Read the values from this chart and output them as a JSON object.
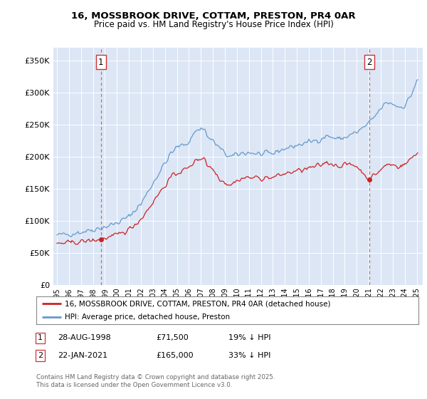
{
  "title_line1": "16, MOSSBROOK DRIVE, COTTAM, PRESTON, PR4 0AR",
  "title_line2": "Price paid vs. HM Land Registry's House Price Index (HPI)",
  "legend_line1": "16, MOSSBROOK DRIVE, COTTAM, PRESTON, PR4 0AR (detached house)",
  "legend_line2": "HPI: Average price, detached house, Preston",
  "footer": "Contains HM Land Registry data © Crown copyright and database right 2025.\nThis data is licensed under the Open Government Licence v3.0.",
  "transaction1_date": "28-AUG-1998",
  "transaction1_price": "£71,500",
  "transaction1_hpi": "19% ↓ HPI",
  "transaction2_date": "22-JAN-2021",
  "transaction2_price": "£165,000",
  "transaction2_hpi": "33% ↓ HPI",
  "ylabel_ticks": [
    "£0",
    "£50K",
    "£100K",
    "£150K",
    "£200K",
    "£250K",
    "£300K",
    "£350K"
  ],
  "ytick_values": [
    0,
    50000,
    100000,
    150000,
    200000,
    250000,
    300000,
    350000
  ],
  "ylim": [
    0,
    370000
  ],
  "plot_bg_color": "#dce6f5",
  "red_line_color": "#cc2222",
  "blue_line_color": "#6699cc",
  "vline_color": "#cc4444",
  "grid_color": "#ffffff",
  "sale1_x": 1998.65,
  "sale1_y": 71500,
  "sale2_x": 2021.05,
  "sale2_y": 165000,
  "xlim_left": 1994.7,
  "xlim_right": 2025.5
}
